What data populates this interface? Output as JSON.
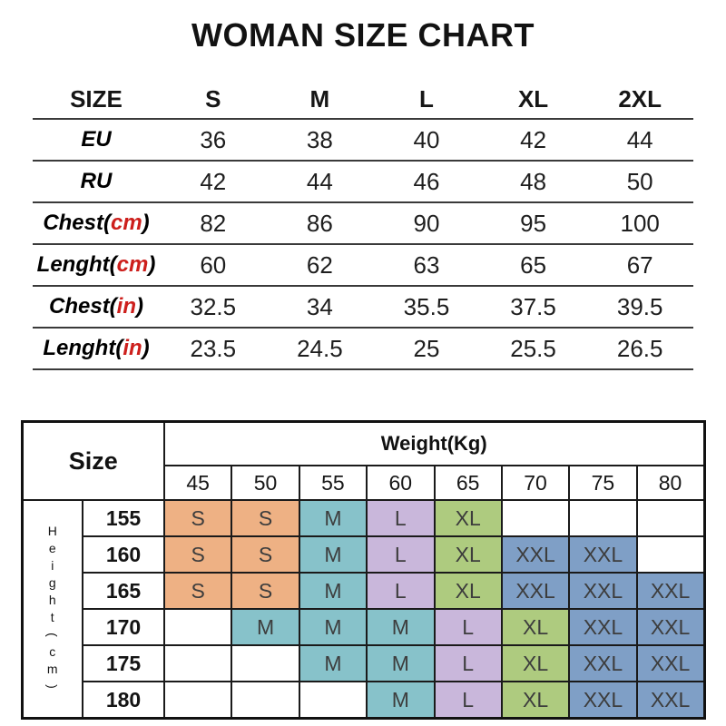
{
  "title": "WOMAN SIZE CHART",
  "styles": {
    "accent_red": "#cd1f1c",
    "rule_color": "#3a3a3a",
    "matrix_border_color": "#111111",
    "cell_text_color": "#3d3d3d"
  },
  "chart_data": [
    {
      "type": "table",
      "name": "size-conversion-table",
      "columns": [
        "SIZE",
        "S",
        "M",
        "L",
        "XL",
        "2XL"
      ],
      "rows": [
        {
          "label": {
            "pre": "EU",
            "red": "",
            "post": ""
          },
          "values": [
            "36",
            "38",
            "40",
            "42",
            "44"
          ]
        },
        {
          "label": {
            "pre": "RU",
            "red": "",
            "post": ""
          },
          "values": [
            "42",
            "44",
            "46",
            "48",
            "50"
          ]
        },
        {
          "label": {
            "pre": "Chest(",
            "red": "cm",
            "post": ")"
          },
          "values": [
            "82",
            "86",
            "90",
            "95",
            "100"
          ]
        },
        {
          "label": {
            "pre": "Lenght(",
            "red": "cm",
            "post": ")"
          },
          "values": [
            "60",
            "62",
            "63",
            "65",
            "67"
          ]
        },
        {
          "label": {
            "pre": "Chest(",
            "red": "in",
            "post": ")"
          },
          "values": [
            "32.5",
            "34",
            "35.5",
            "37.5",
            "39.5"
          ]
        },
        {
          "label": {
            "pre": "Lenght(",
            "red": "in",
            "post": ")"
          },
          "values": [
            "23.5",
            "24.5",
            "25",
            "25.5",
            "26.5"
          ]
        }
      ]
    },
    {
      "type": "table",
      "name": "height-weight-size-matrix",
      "corner_label": "Size",
      "col_axis_label": "Weight(Kg)",
      "row_axis_label": "Height(cm)",
      "weights": [
        "45",
        "50",
        "55",
        "60",
        "65",
        "70",
        "75",
        "80"
      ],
      "rows": [
        {
          "height": "155",
          "cells": [
            "S",
            "S",
            "M",
            "L",
            "XL",
            "",
            "",
            ""
          ]
        },
        {
          "height": "160",
          "cells": [
            "S",
            "S",
            "M",
            "L",
            "XL",
            "XXL",
            "XXL",
            ""
          ]
        },
        {
          "height": "165",
          "cells": [
            "S",
            "S",
            "M",
            "L",
            "XL",
            "XXL",
            "XXL",
            "XXL"
          ]
        },
        {
          "height": "170",
          "cells": [
            "",
            "M",
            "M",
            "M",
            "L",
            "XL",
            "XXL",
            "XXL"
          ]
        },
        {
          "height": "175",
          "cells": [
            "",
            "",
            "M",
            "M",
            "L",
            "XL",
            "XXL",
            "XXL"
          ]
        },
        {
          "height": "180",
          "cells": [
            "",
            "",
            "",
            "M",
            "L",
            "XL",
            "XXL",
            "XXL"
          ]
        }
      ],
      "size_colors": {
        "S": "#eeb184",
        "M": "#87c2ca",
        "L": "#c9b7db",
        "XL": "#aecb7f",
        "XXL": "#7f9fc6"
      }
    }
  ]
}
